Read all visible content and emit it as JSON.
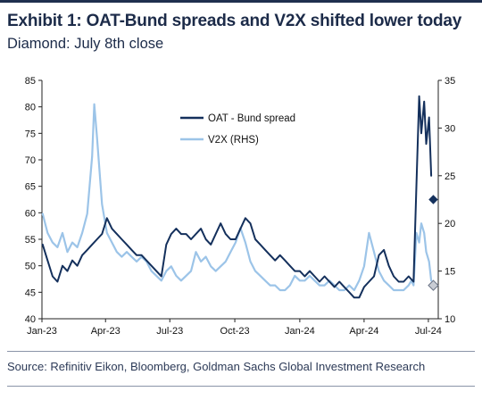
{
  "header": {
    "title": "Exhibit 1: OAT-Bund spreads and V2X shifted lower today",
    "subtitle": "Diamond: July 8th close"
  },
  "footer": {
    "source": "Source: Refinitiv Eikon, Bloomberg, Goldman Sachs Global Investment Research"
  },
  "colors": {
    "oat": "#14305c",
    "v2x": "#9cc4e8",
    "marker_fill": "#c8ccd4",
    "axis": "#222222"
  },
  "chart_data": {
    "type": "line",
    "x_tick_labels": [
      "Jan-23",
      "Apr-23",
      "Jul-23",
      "Oct-23",
      "Jan-24",
      "Apr-24",
      "Jul-24"
    ],
    "x_tick_dates": [
      "2023-01-01",
      "2023-04-01",
      "2023-07-01",
      "2023-10-01",
      "2024-01-01",
      "2024-04-01",
      "2024-07-01"
    ],
    "xlim": [
      "2023-01-01",
      "2024-07-15"
    ],
    "y_left": {
      "lim": [
        40,
        85
      ],
      "ticks": [
        40,
        45,
        50,
        55,
        60,
        65,
        70,
        75,
        80,
        85
      ]
    },
    "y_right": {
      "lim": [
        10,
        35
      ],
      "ticks": [
        10,
        15,
        20,
        25,
        30,
        35
      ]
    },
    "legend": {
      "position": "top-center"
    },
    "series": [
      {
        "name": "OAT - Bund spread",
        "axis": "left",
        "x": [
          "2023-01-02",
          "2023-01-09",
          "2023-01-16",
          "2023-01-23",
          "2023-01-30",
          "2023-02-06",
          "2023-02-13",
          "2023-02-20",
          "2023-02-27",
          "2023-03-06",
          "2023-03-13",
          "2023-03-20",
          "2023-03-27",
          "2023-04-03",
          "2023-04-10",
          "2023-04-17",
          "2023-04-24",
          "2023-05-01",
          "2023-05-08",
          "2023-05-15",
          "2023-05-22",
          "2023-05-29",
          "2023-06-05",
          "2023-06-12",
          "2023-06-19",
          "2023-06-26",
          "2023-07-03",
          "2023-07-10",
          "2023-07-17",
          "2023-07-24",
          "2023-07-31",
          "2023-08-07",
          "2023-08-14",
          "2023-08-21",
          "2023-08-28",
          "2023-09-04",
          "2023-09-11",
          "2023-09-18",
          "2023-09-25",
          "2023-10-02",
          "2023-10-09",
          "2023-10-16",
          "2023-10-23",
          "2023-10-30",
          "2023-11-06",
          "2023-11-13",
          "2023-11-20",
          "2023-11-27",
          "2023-12-04",
          "2023-12-11",
          "2023-12-18",
          "2023-12-25",
          "2024-01-01",
          "2024-01-08",
          "2024-01-15",
          "2024-01-22",
          "2024-01-29",
          "2024-02-05",
          "2024-02-12",
          "2024-02-19",
          "2024-02-26",
          "2024-03-04",
          "2024-03-11",
          "2024-03-18",
          "2024-03-25",
          "2024-04-01",
          "2024-04-08",
          "2024-04-15",
          "2024-04-22",
          "2024-04-29",
          "2024-05-06",
          "2024-05-13",
          "2024-05-20",
          "2024-05-27",
          "2024-06-03",
          "2024-06-10",
          "2024-06-14",
          "2024-06-18",
          "2024-06-21",
          "2024-06-25",
          "2024-06-28",
          "2024-07-02",
          "2024-07-05"
        ],
        "values": [
          54,
          51,
          48,
          47,
          50,
          49,
          51,
          50,
          52,
          53,
          54,
          55,
          56,
          59,
          57,
          56,
          55,
          54,
          53,
          52,
          52,
          51,
          50,
          49,
          48,
          54,
          56,
          57,
          56,
          56,
          55,
          56,
          57,
          55,
          54,
          56,
          58,
          56,
          55,
          55,
          57,
          59,
          58,
          55,
          54,
          53,
          52,
          51,
          52,
          51,
          50,
          49,
          49,
          48,
          49,
          48,
          47,
          48,
          47,
          46,
          47,
          46,
          45,
          44,
          44,
          46,
          47,
          48,
          52,
          53,
          50,
          48,
          47,
          47,
          48,
          47,
          65,
          82,
          75,
          81,
          73,
          78,
          67
        ]
      },
      {
        "name": "V2X (RHS)",
        "axis": "right",
        "x": [
          "2023-01-02",
          "2023-01-09",
          "2023-01-16",
          "2023-01-23",
          "2023-01-30",
          "2023-02-06",
          "2023-02-13",
          "2023-02-20",
          "2023-02-27",
          "2023-03-06",
          "2023-03-13",
          "2023-03-16",
          "2023-03-20",
          "2023-03-27",
          "2023-04-03",
          "2023-04-10",
          "2023-04-17",
          "2023-04-24",
          "2023-05-01",
          "2023-05-08",
          "2023-05-15",
          "2023-05-22",
          "2023-05-29",
          "2023-06-05",
          "2023-06-12",
          "2023-06-19",
          "2023-06-26",
          "2023-07-03",
          "2023-07-10",
          "2023-07-17",
          "2023-07-24",
          "2023-07-31",
          "2023-08-07",
          "2023-08-14",
          "2023-08-21",
          "2023-08-28",
          "2023-09-04",
          "2023-09-11",
          "2023-09-18",
          "2023-09-25",
          "2023-10-02",
          "2023-10-09",
          "2023-10-16",
          "2023-10-23",
          "2023-10-30",
          "2023-11-06",
          "2023-11-13",
          "2023-11-20",
          "2023-11-27",
          "2023-12-04",
          "2023-12-11",
          "2023-12-18",
          "2023-12-25",
          "2024-01-01",
          "2024-01-08",
          "2024-01-15",
          "2024-01-22",
          "2024-01-29",
          "2024-02-05",
          "2024-02-12",
          "2024-02-19",
          "2024-02-26",
          "2024-03-04",
          "2024-03-11",
          "2024-03-18",
          "2024-03-25",
          "2024-04-01",
          "2024-04-08",
          "2024-04-15",
          "2024-04-22",
          "2024-04-29",
          "2024-05-06",
          "2024-05-13",
          "2024-05-20",
          "2024-05-27",
          "2024-06-03",
          "2024-06-07",
          "2024-06-10",
          "2024-06-14",
          "2024-06-18",
          "2024-06-21",
          "2024-06-25",
          "2024-06-28",
          "2024-07-02",
          "2024-07-05"
        ],
        "values": [
          21,
          19,
          18,
          17.5,
          19,
          17,
          18,
          17.5,
          19,
          21,
          27,
          32.5,
          29,
          22,
          19,
          18,
          17,
          16.5,
          17,
          16.5,
          16,
          16.5,
          16,
          15,
          14.5,
          14,
          15,
          15.5,
          14.5,
          14,
          14.5,
          15,
          17,
          16,
          16.5,
          15.5,
          15,
          15.5,
          16,
          17,
          18,
          19.5,
          18,
          16,
          15,
          14.5,
          14,
          13.5,
          13.5,
          13,
          13,
          13.5,
          14.5,
          14,
          14,
          14.5,
          14,
          13.5,
          13.5,
          14,
          13.5,
          13,
          13,
          13.5,
          13,
          14,
          15.5,
          19,
          17,
          15,
          14,
          13.5,
          13,
          13,
          13,
          13.5,
          14,
          13.5,
          19,
          18,
          20,
          19,
          17,
          16,
          14
        ]
      }
    ],
    "markers": [
      {
        "series": "OAT - Bund spread",
        "date": "2024-07-08",
        "value": 62.5,
        "shape": "diamond"
      },
      {
        "series": "V2X (RHS)",
        "date": "2024-07-08",
        "value": 13.5,
        "shape": "diamond"
      }
    ]
  }
}
